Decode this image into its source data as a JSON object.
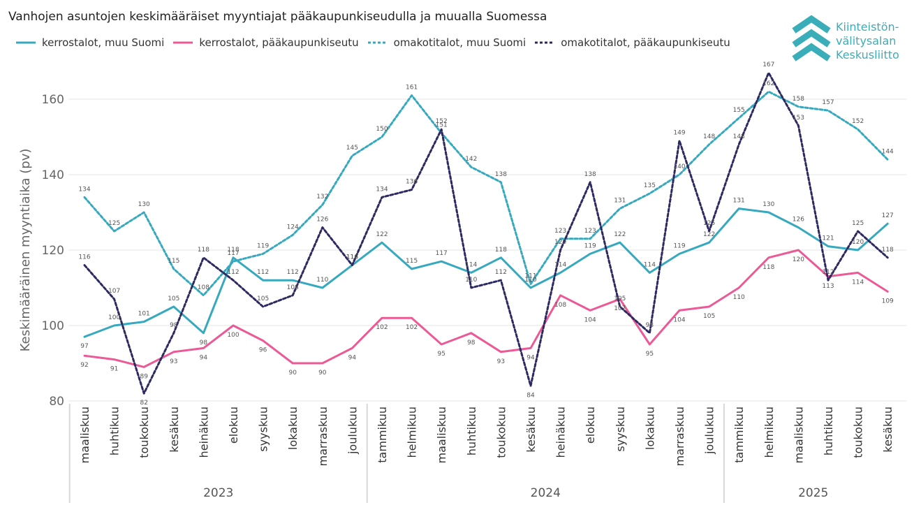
{
  "title": "Vanhojen asuntojen keskimääräiset myyntiajat pääkaupunkiseudulla ja muualla Suomessa",
  "logo": {
    "icon": "chevron-stack-logo",
    "lines": [
      "Kiinteistön-",
      "välitysalan",
      "Keskusliitto"
    ],
    "color": "#3aaeb8"
  },
  "chart_data": {
    "type": "line",
    "ylabel": "Keskimääräinen myyntiaika (pv)",
    "xlabel": "",
    "ylim": [
      80,
      168
    ],
    "yticks": [
      80,
      100,
      120,
      140,
      160
    ],
    "grid": true,
    "legend_position": "top-left",
    "categories": [
      "maaliskuu",
      "huhtikuu",
      "toukokuu",
      "kesäkuu",
      "heinäkuu",
      "elokuu",
      "syyskuu",
      "lokakuu",
      "marraskuu",
      "joulukuu",
      "tammikuu",
      "helmikuu",
      "maaliskuu",
      "huhtikuu",
      "toukokuu",
      "kesäkuu",
      "heinäkuu",
      "elokuu",
      "syyskuu",
      "lokakuu",
      "marraskuu",
      "joulukuu",
      "tammikuu",
      "helmikuu",
      "maaliskuu",
      "huhtikuu",
      "toukokuu",
      "kesäkuu"
    ],
    "years": [
      {
        "label": "2023",
        "start": 0,
        "end": 9
      },
      {
        "label": "2024",
        "start": 10,
        "end": 21
      },
      {
        "label": "2025",
        "start": 22,
        "end": 27
      }
    ],
    "series": [
      {
        "name": "kerrostalot, muu Suomi",
        "color": "#36a9bf",
        "dash": "solid",
        "values": [
          97,
          100,
          101,
          105,
          98,
          118,
          112,
          112,
          110,
          116,
          122,
          115,
          117,
          114,
          118,
          110,
          114,
          119,
          122,
          114,
          119,
          122,
          131,
          130,
          126,
          121,
          120,
          127
        ]
      },
      {
        "name": "kerrostalot, pääkaupunkiseutu",
        "color": "#ec5a96",
        "dash": "solid",
        "values": [
          92,
          91,
          89,
          93,
          94,
          100,
          96,
          90,
          90,
          94,
          102,
          102,
          95,
          98,
          93,
          94,
          108,
          104,
          107,
          95,
          104,
          105,
          110,
          118,
          120,
          113,
          114,
          109
        ]
      },
      {
        "name": "omakotitalot, muu Suomi",
        "color": "#36a9bf",
        "dash": "dotted",
        "values": [
          134,
          125,
          130,
          115,
          108,
          117,
          119,
          124,
          132,
          145,
          150,
          161,
          151,
          142,
          138,
          111,
          123,
          123,
          131,
          135,
          140,
          148,
          155,
          162,
          158,
          157,
          152,
          144
        ]
      },
      {
        "name": "omakotitalot, pääkaupunkiseutu",
        "color": "#2d2a62",
        "dash": "dotted",
        "values": [
          116,
          107,
          82,
          98,
          118,
          112,
          105,
          108,
          126,
          116,
          134,
          136,
          152,
          110,
          112,
          84,
          120,
          138,
          105,
          98,
          149,
          125,
          148,
          167,
          153,
          112,
          125,
          118
        ]
      }
    ]
  }
}
